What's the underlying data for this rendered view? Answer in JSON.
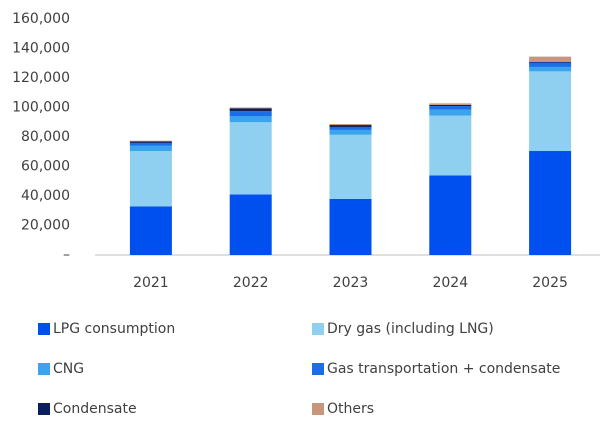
{
  "chart_data": {
    "type": "bar",
    "stacked": true,
    "categories": [
      "2021",
      "2022",
      "2023",
      "2024",
      "2025"
    ],
    "series": [
      {
        "name": "LPG consumption",
        "color": "#0050f0",
        "values": [
          33000,
          41000,
          38000,
          54000,
          70500
        ]
      },
      {
        "name": "Dry gas (including LNG)",
        "color": "#8fcfef",
        "values": [
          37500,
          49000,
          43500,
          40500,
          54000
        ]
      },
      {
        "name": "CNG",
        "color": "#3aa4ec",
        "values": [
          3500,
          4000,
          3300,
          4000,
          3000
        ]
      },
      {
        "name": "Gas transportation + condensate",
        "color": "#1a6fe8",
        "values": [
          2000,
          3500,
          2000,
          2500,
          3000
        ]
      },
      {
        "name": "Condensate",
        "color": "#0a1f5c",
        "values": [
          1000,
          2000,
          1300,
          800,
          500
        ]
      },
      {
        "name": "Others",
        "color": "#c8967a",
        "values": [
          500,
          500,
          700,
          1000,
          3500
        ]
      }
    ],
    "ylim": [
      0,
      160000
    ],
    "yticks": [
      {
        "value": 0,
        "label": "–"
      },
      {
        "value": 20000,
        "label": "20,000"
      },
      {
        "value": 40000,
        "label": "40,000"
      },
      {
        "value": 60000,
        "label": "60,000"
      },
      {
        "value": 80000,
        "label": "80,000"
      },
      {
        "value": 100000,
        "label": "100,000"
      },
      {
        "value": 120000,
        "label": "120,000"
      },
      {
        "value": 140000,
        "label": "140,000"
      },
      {
        "value": 160000,
        "label": "160,000"
      }
    ],
    "grid": false,
    "legend": "bottom"
  }
}
